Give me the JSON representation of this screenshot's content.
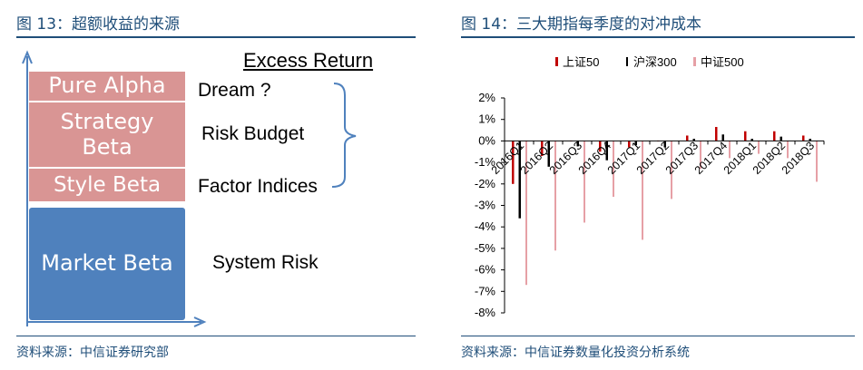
{
  "left": {
    "title": "图 13：超额收益的来源",
    "header": "Excess Return",
    "layers": [
      {
        "name": "Pure Alpha",
        "desc": "Dream ?"
      },
      {
        "name": "Strategy Beta",
        "desc": "Risk Budget"
      },
      {
        "name": "Style Beta",
        "desc": "Factor Indices"
      },
      {
        "name": "Market Beta",
        "desc": "System Risk"
      }
    ],
    "source": "资料来源：中信证券研究部"
  },
  "right": {
    "title": "图 14：三大期指每季度的对冲成本",
    "source": "资料来源：中信证券数量化投资分析系统"
  },
  "colors": {
    "title": "#1f4e79",
    "pink": "#d99594",
    "blue": "#4f81bd",
    "s1": "#c00000",
    "s2": "#000000",
    "s3": "#e6a0a6"
  },
  "chart_data": {
    "type": "bar",
    "categories": [
      "2016Q1",
      "2016Q2",
      "2016Q3",
      "2016Q4",
      "2017Q1",
      "2017Q2",
      "2017Q3",
      "2017Q4",
      "2018Q1",
      "2018Q2",
      "2018Q3"
    ],
    "series": [
      {
        "name": "上证50",
        "values": [
          -2.0,
          -0.7,
          0.0,
          -0.5,
          -0.3,
          0.0,
          0.25,
          0.65,
          0.45,
          0.45,
          0.25
        ]
      },
      {
        "name": "沪深300",
        "values": [
          -3.6,
          -1.2,
          -0.25,
          -0.9,
          -0.2,
          -0.3,
          0.1,
          0.3,
          0.1,
          0.2,
          0.1
        ]
      },
      {
        "name": "中证500",
        "values": [
          -6.7,
          -5.1,
          -3.8,
          -2.6,
          -4.6,
          -2.7,
          -1.3,
          -0.8,
          -0.6,
          -0.8,
          -1.9
        ]
      }
    ],
    "yticks": [
      "2%",
      "1%",
      "0%",
      "-1%",
      "-2%",
      "-3%",
      "-4%",
      "-5%",
      "-6%",
      "-7%",
      "-8%"
    ],
    "ylim": [
      -8,
      2
    ],
    "legend": "top",
    "grid": false
  }
}
